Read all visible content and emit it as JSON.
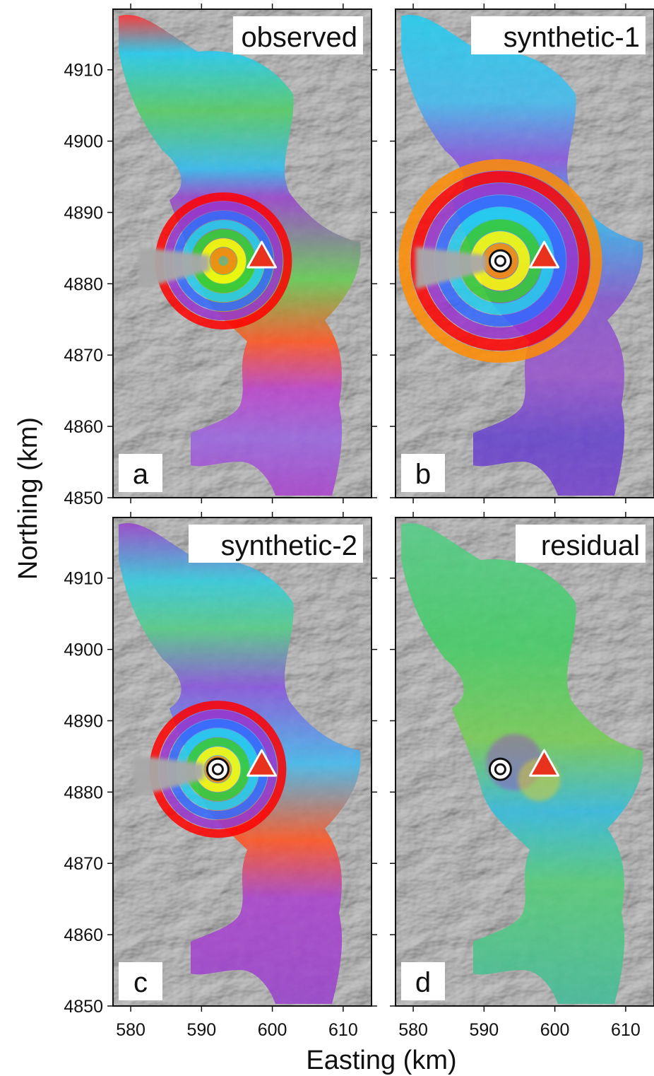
{
  "figure": {
    "ylabel": "Northing (km)",
    "xlabel": "Easting (km)",
    "y_ticks": [
      4850,
      4860,
      4870,
      4880,
      4890,
      4900,
      4910
    ],
    "x_ticks": [
      580,
      590,
      600,
      610
    ],
    "y_range": [
      4850,
      4918.5
    ],
    "x_range": [
      577.5,
      614.0
    ]
  },
  "panels": [
    {
      "title": "observed",
      "letter": "a",
      "show_source": false,
      "style": "obs"
    },
    {
      "title": "synthetic-1",
      "letter": "b",
      "show_source": true,
      "style": "syn"
    },
    {
      "title": "synthetic-2",
      "letter": "c",
      "show_source": true,
      "style": "syn2"
    },
    {
      "title": "residual",
      "letter": "d",
      "show_source": true,
      "style": "res"
    }
  ],
  "markers": {
    "vent_triangle": {
      "easting": 598.5,
      "northing": 4883.5,
      "color": "#e8321e"
    },
    "source_circle": {
      "easting": 592.3,
      "northing": 4883.2
    }
  },
  "colors": {
    "hillshade_base": "#a9a9a9",
    "fringe_scale": [
      "#ff0000",
      "#ff8c00",
      "#ffff00",
      "#33cc33",
      "#22ccee",
      "#3366ff",
      "#9933cc",
      "#ff0000"
    ]
  }
}
